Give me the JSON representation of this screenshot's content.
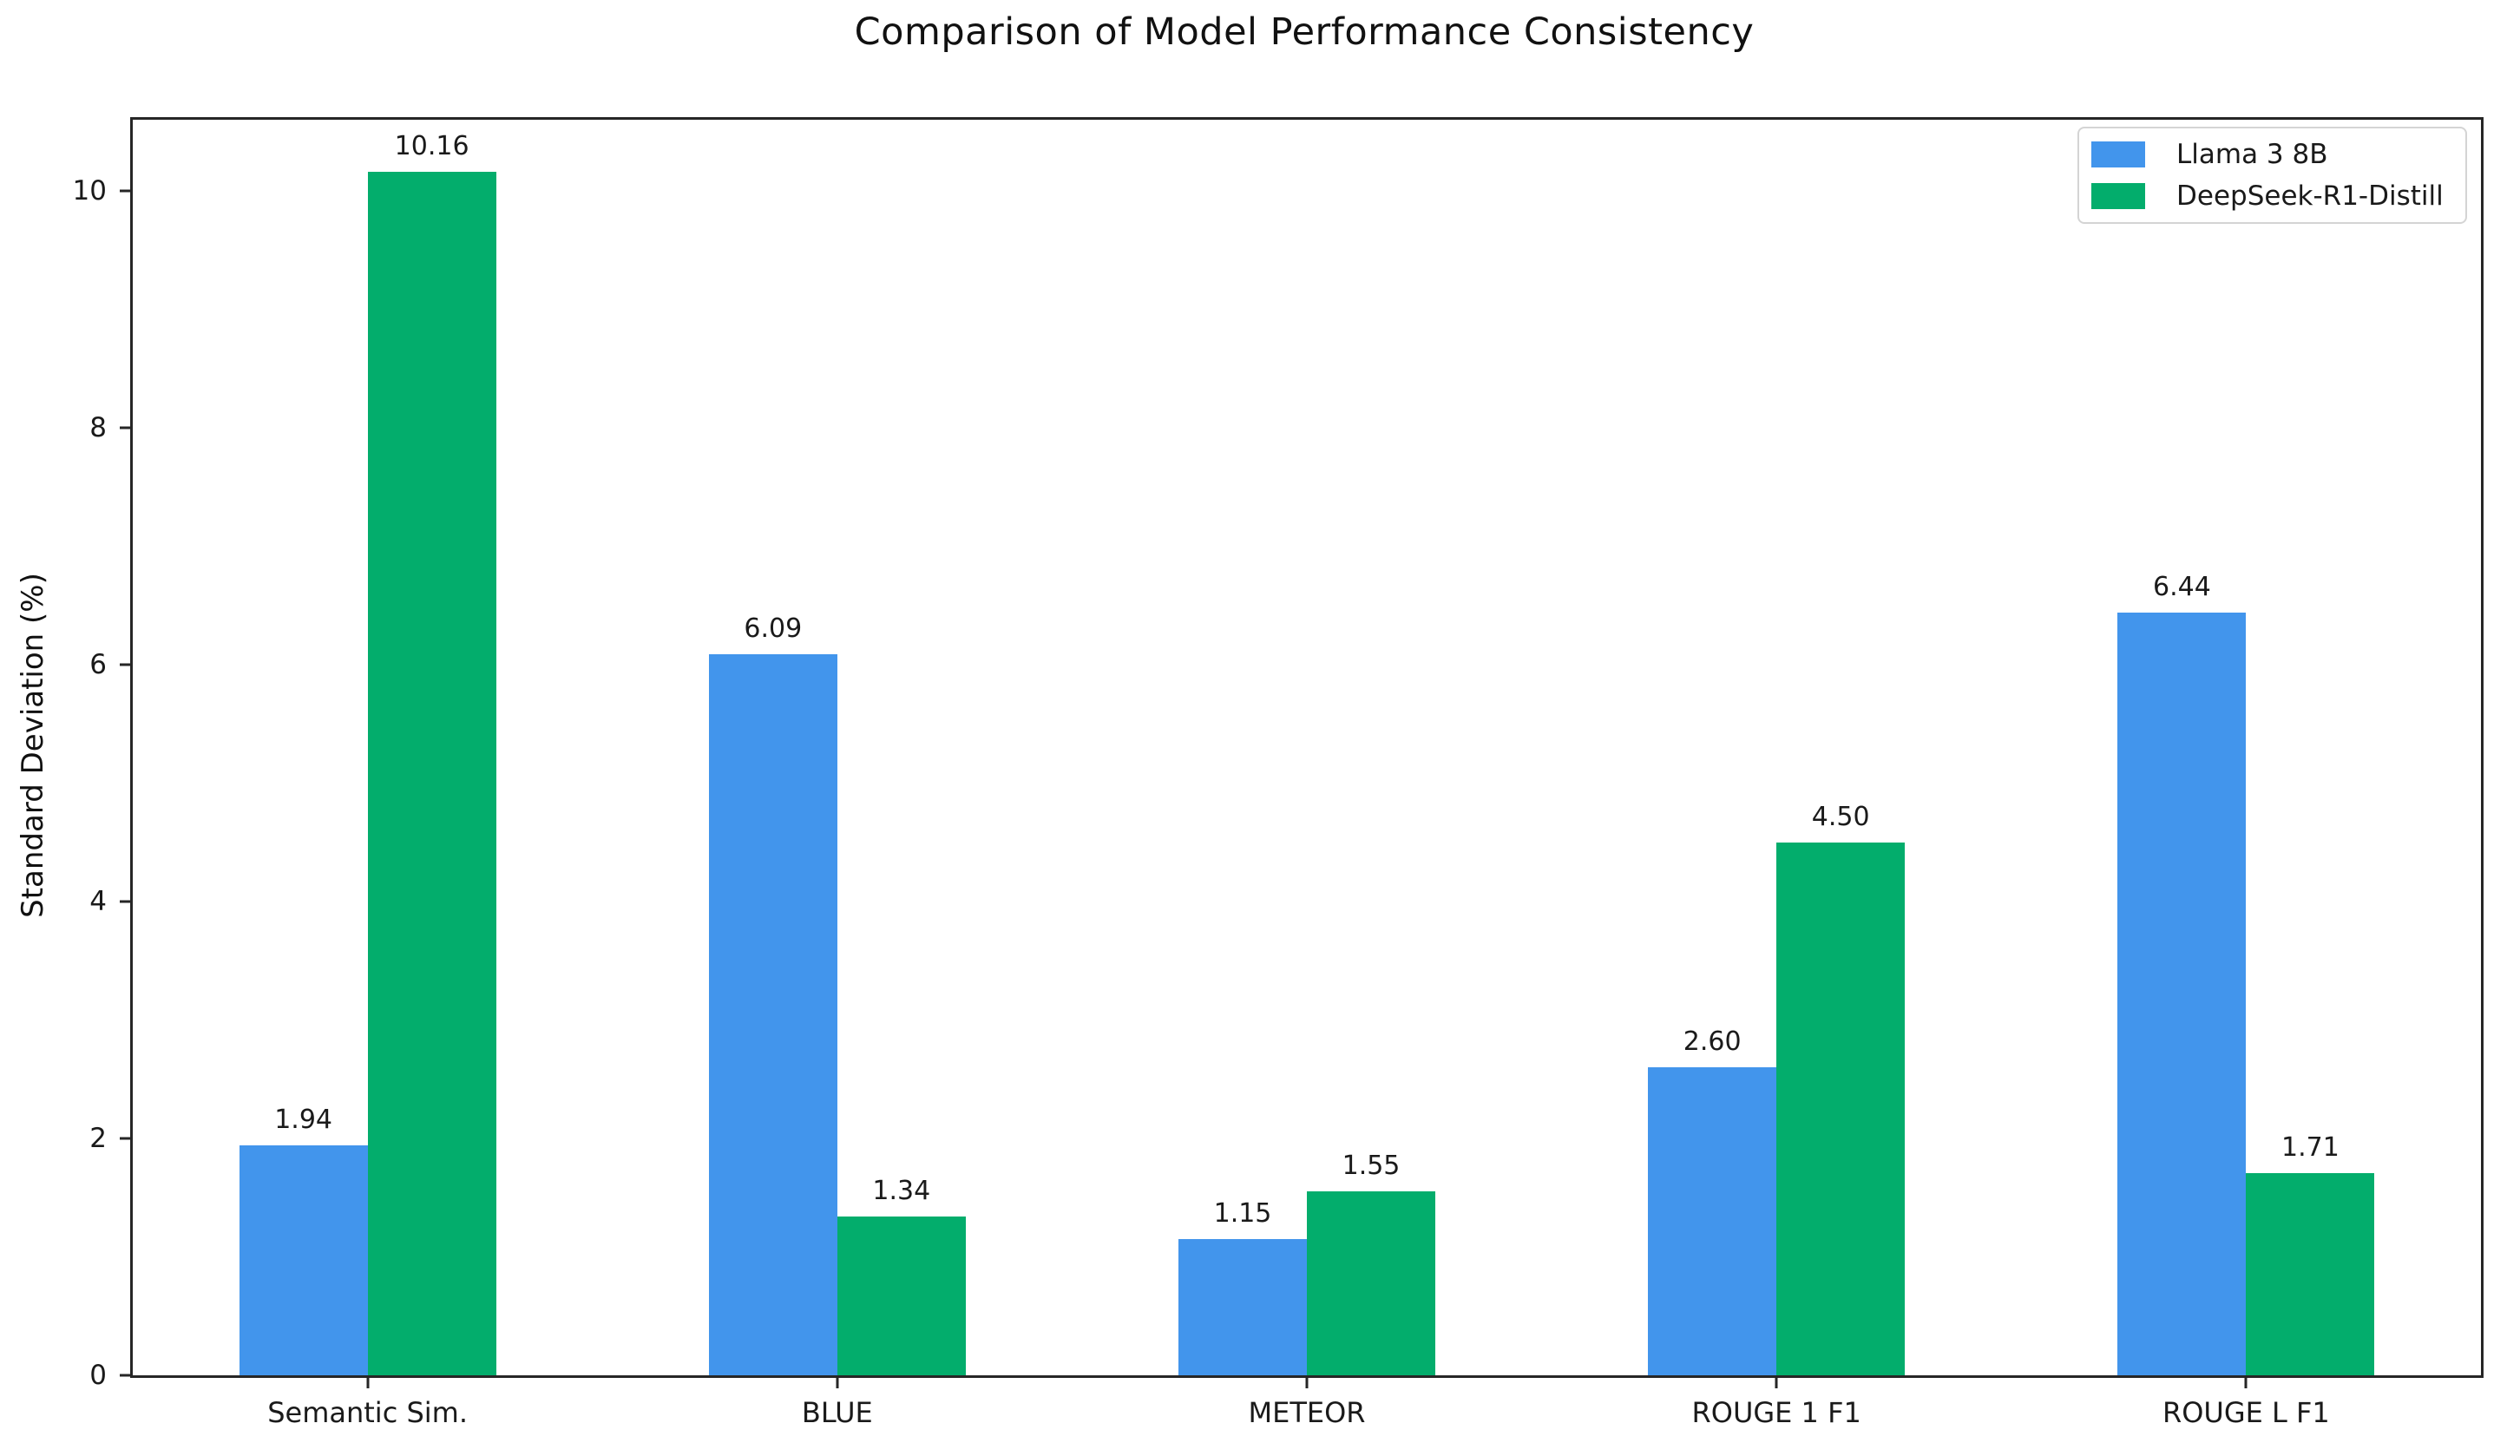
{
  "chart_data": {
    "type": "bar",
    "title": "Comparison of Model Performance Consistency",
    "xlabel": "",
    "ylabel": "Standard Deviation (%)",
    "categories": [
      "Semantic Sim.",
      "BLUE",
      "METEOR",
      "ROUGE 1 F1",
      "ROUGE L F1"
    ],
    "series": [
      {
        "name": "Llama 3 8B",
        "color": "#4295EC",
        "values": [
          1.94,
          6.09,
          1.15,
          2.6,
          6.44
        ]
      },
      {
        "name": "DeepSeek-R1-Distill",
        "color": "#03AD6C",
        "values": [
          10.16,
          1.34,
          1.55,
          4.5,
          1.71
        ]
      }
    ],
    "bar_value_labels": [
      [
        "1.94",
        "6.09",
        "1.15",
        "2.60",
        "6.44"
      ],
      [
        "10.16",
        "1.34",
        "1.55",
        "4.50",
        "1.71"
      ]
    ],
    "yticks": [
      "0",
      "2",
      "4",
      "6",
      "8",
      "10"
    ],
    "ytick_values": [
      0,
      2,
      4,
      6,
      8,
      10
    ],
    "ylim": [
      0,
      10.6
    ],
    "grid": false,
    "legend_position": "upper right",
    "value_label_decimals": 2,
    "colors": {
      "spine": "#262626",
      "text": "#1a1a1a",
      "background": "#ffffff",
      "legend_border": "#d4d4d4"
    }
  }
}
